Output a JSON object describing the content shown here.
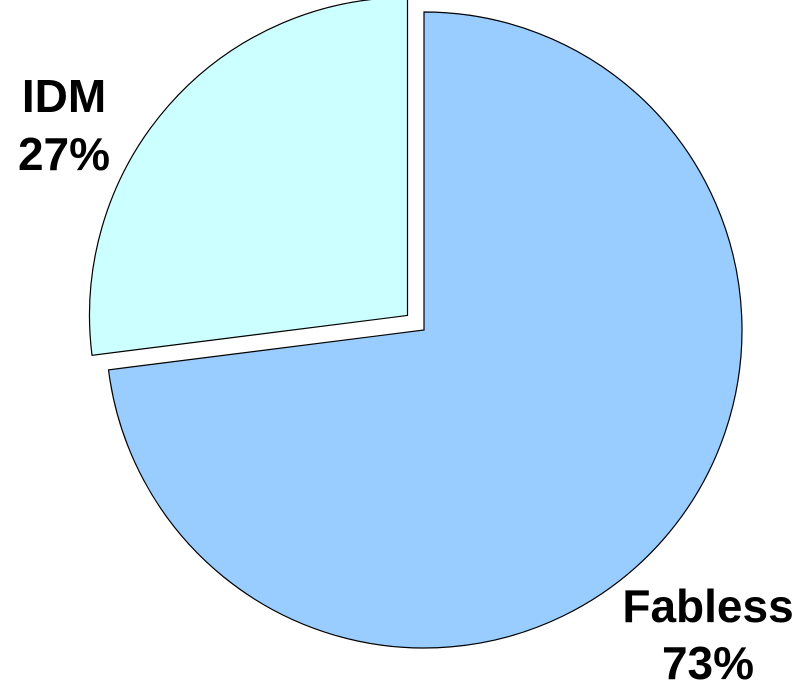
{
  "chart_data": {
    "type": "pie",
    "title": "",
    "slices": [
      {
        "name": "IDM",
        "value": 27,
        "percent_label": "27%",
        "color": "#ccffff",
        "exploded": true
      },
      {
        "name": "Fabless",
        "value": 73,
        "percent_label": "73%",
        "color": "#99ccff",
        "exploded": false
      }
    ],
    "start_angle": "12 o'clock",
    "direction": "clockwise",
    "legend": "none",
    "outline_color": "#000000"
  }
}
